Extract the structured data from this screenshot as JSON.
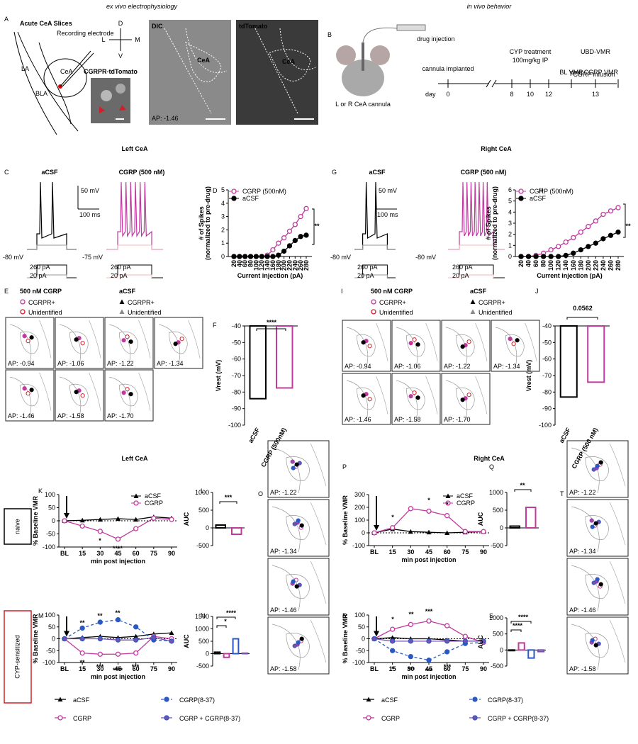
{
  "headers": {
    "ex_vivo": "ex vivo electrophysiology",
    "in_vivo": "in vivo behavior",
    "left_1": "Left CeA",
    "right_1": "Right CeA",
    "left_2": "Left CeA",
    "right_2": "Right CeA"
  },
  "panel_a": {
    "letter": "A",
    "title": "Acute CeA Slices",
    "electrode": "Recording electrode",
    "cea": "CeA",
    "la": "LA",
    "bla": "BLA",
    "reporter": "CGRPR-tdTomato",
    "dic": "DIC",
    "dic_cea": "CeA",
    "tdtomato": "tdTomato",
    "td_cea": "CeA",
    "ap": "AP: -1.46",
    "compass": [
      "D",
      "L",
      "M",
      "V"
    ]
  },
  "panel_b": {
    "letter": "B",
    "drug": "drug injection",
    "cannula": "L or R CeA cannula",
    "implanted": "cannula implanted",
    "cyp": "CYP treatment",
    "dose": "100mg/kg IP",
    "ubd": "UBD-VMR",
    "bl": "BL VMR",
    "infusion": "CGRP infusion",
    "post": "post CGRP VMR",
    "day": "day",
    "days": [
      0,
      8,
      10,
      12,
      13
    ]
  },
  "traces": [
    {
      "letter": "C",
      "acsf": "aCSF",
      "cgrp": "CGRP (500 nM)",
      "scale_v": "50 mV",
      "scale_t": "100 ms",
      "rest_acsf": "-80 mV",
      "rest_cgrp": "-75 mV",
      "step_hi": "260 pA",
      "step_lo": "20 pA"
    },
    {
      "letter": "G",
      "acsf": "aCSF",
      "cgrp": "CGRP (500 nM)",
      "scale_v": "50 mV",
      "scale_t": "100 ms",
      "rest_acsf": "-80 mV",
      "rest_cgrp": "-80 mV",
      "step_hi": "260 pA",
      "step_lo": "20 pA"
    }
  ],
  "maps": [
    {
      "letter": "E",
      "legend_cgrp": "500 nM CGRP",
      "legend_acsf": "aCSF",
      "items": [
        "CGRPR+",
        "Unidentified",
        "CGRPR+",
        "Unidentified"
      ],
      "aps": [
        "AP: -0.94",
        "AP: -1.06",
        "AP: -1.22",
        "AP: -1.34",
        "AP: -1.46",
        "AP: -1.58",
        "AP: -1.70"
      ]
    },
    {
      "letter": "I",
      "legend_cgrp": "500 nM CGRP",
      "legend_acsf": "aCSF",
      "items": [
        "CGRPR+",
        "Unidentified",
        "CGRPR+",
        "Unidentified"
      ],
      "aps": [
        "AP: -0.94",
        "AP: -1.06",
        "AP: -1.22",
        "AP: -1.34",
        "AP: -1.46",
        "AP: -1.58",
        "AP: -1.70"
      ]
    }
  ],
  "behavior_rows": {
    "naive": "naive",
    "cyp": "CYP-sensitized"
  },
  "atlases": [
    {
      "letter": "O",
      "aps": [
        "AP: -1.22",
        "AP: -1.34",
        "AP: -1.46",
        "AP: -1.58"
      ]
    },
    {
      "letter": "T",
      "aps": [
        "AP: -1.22",
        "AP: -1.34",
        "AP: -1.46",
        "AP: -1.58"
      ]
    }
  ],
  "chart_data": [
    {
      "type": "line",
      "panel": "D",
      "xlabel": "Current injection (pA)",
      "ylabel": [
        "# of Spikes",
        "(normalized to pre-drug)"
      ],
      "categories": [
        20,
        40,
        60,
        80,
        100,
        120,
        140,
        160,
        180,
        200,
        220,
        240,
        260,
        280
      ],
      "ylim": [
        0,
        5
      ],
      "yticks": [
        0,
        1,
        2,
        3,
        4,
        5
      ],
      "legend": "upper left",
      "annotations": [
        "**"
      ],
      "series": [
        {
          "name": "CGRP (500nM)",
          "color": "#c0399e",
          "marker": "circle-open",
          "values": [
            0,
            0,
            0,
            0,
            0,
            0,
            0.1,
            0.5,
            1.0,
            1.4,
            1.9,
            2.4,
            3.0,
            3.6
          ]
        },
        {
          "name": "aCSF",
          "color": "#000000",
          "marker": "circle",
          "values": [
            0,
            0,
            0,
            0,
            0,
            0,
            0,
            0,
            0.1,
            0.4,
            0.8,
            1.2,
            1.5,
            1.6
          ]
        }
      ]
    },
    {
      "type": "bar",
      "panel": "F",
      "ylabel": "Vrest (mV)",
      "categories": [
        "aCSF",
        "CGRP (500nM)"
      ],
      "values": [
        -84,
        -77.5
      ],
      "colors": [
        "#000000",
        "#c0399e"
      ],
      "ylim": [
        -100,
        -40
      ],
      "yticks": [
        -100,
        -90,
        -80,
        -70,
        -60,
        -50,
        -40
      ],
      "annotations": [
        "****"
      ]
    },
    {
      "type": "line",
      "panel": "H",
      "xlabel": "Current injection (pA)",
      "ylabel": [
        "# of Spikes",
        "(normalized to pre-drug)"
      ],
      "categories": [
        20,
        40,
        60,
        80,
        100,
        120,
        140,
        160,
        180,
        200,
        220,
        240,
        260,
        280
      ],
      "ylim": [
        0,
        6
      ],
      "yticks": [
        0,
        1,
        2,
        3,
        4,
        5,
        6
      ],
      "legend": "upper left",
      "annotations": [
        "**"
      ],
      "series": [
        {
          "name": "CGRP (500nM)",
          "color": "#c0399e",
          "marker": "circle-open",
          "values": [
            0,
            0,
            0.1,
            0.3,
            0.6,
            0.9,
            1.3,
            1.7,
            2.2,
            2.7,
            3.2,
            3.8,
            4.1,
            4.4
          ]
        },
        {
          "name": "aCSF",
          "color": "#000000",
          "marker": "circle",
          "values": [
            0,
            0,
            0,
            0,
            0,
            0,
            0.1,
            0.3,
            0.6,
            0.9,
            1.2,
            1.6,
            1.9,
            2.2
          ]
        }
      ]
    },
    {
      "type": "bar",
      "panel": "J",
      "ylabel": "Vrest (mV)",
      "categories": [
        "aCSF",
        "CGRP (500 nM)"
      ],
      "values": [
        -83,
        -74
      ],
      "colors": [
        "#000000",
        "#c0399e"
      ],
      "ylim": [
        -100,
        -40
      ],
      "yticks": [
        -100,
        -90,
        -80,
        -70,
        -60,
        -50,
        -40
      ],
      "annotations": [
        "0.0562"
      ]
    },
    {
      "type": "line",
      "panel": "K",
      "xlabel": "min post injection",
      "ylabel": "% Baseline VMR",
      "categories": [
        "BL",
        15,
        30,
        45,
        60,
        75,
        90
      ],
      "ylim": [
        -100,
        100
      ],
      "yticks": [
        -100,
        -50,
        0,
        50,
        100
      ],
      "zero_line": true,
      "legend": "upper right",
      "annotations": [
        "*",
        "****"
      ],
      "series": [
        {
          "name": "aCSF",
          "color": "#000000",
          "marker": "triangle",
          "values": [
            0,
            2,
            5,
            8,
            5,
            15,
            10
          ]
        },
        {
          "name": "CGRP",
          "color": "#c0399e",
          "marker": "circle-open",
          "values": [
            0,
            -20,
            -40,
            -70,
            -30,
            10,
            5
          ]
        }
      ]
    },
    {
      "type": "bar",
      "panel": "L",
      "ylabel": "AUC",
      "categories": [
        null,
        null
      ],
      "values": [
        80,
        -180
      ],
      "colors": [
        "#000000",
        "#c0399e"
      ],
      "ylim": [
        -500,
        1000
      ],
      "yticks": [
        -500,
        0,
        500,
        1000
      ],
      "zero_line": true,
      "annotations": [
        "***"
      ]
    },
    {
      "type": "line",
      "panel": "P",
      "xlabel": "min post injection",
      "ylabel": "% Baseline VMR",
      "categories": [
        "BL",
        15,
        30,
        45,
        60,
        75,
        90
      ],
      "ylim": [
        -100,
        300
      ],
      "yticks": [
        -100,
        0,
        100,
        200,
        300
      ],
      "zero_line": true,
      "legend": "upper right",
      "annotations": [
        "*",
        "*",
        "*"
      ],
      "series": [
        {
          "name": "aCSF",
          "color": "#000000",
          "marker": "triangle",
          "values": [
            0,
            30,
            10,
            5,
            0,
            5,
            10
          ]
        },
        {
          "name": "CGRP",
          "color": "#c0399e",
          "marker": "circle-open",
          "values": [
            0,
            40,
            190,
            170,
            135,
            10,
            10
          ]
        }
      ]
    },
    {
      "type": "bar",
      "panel": "Q",
      "ylabel": "AUC",
      "categories": [
        null,
        null
      ],
      "values": [
        50,
        580
      ],
      "colors": [
        "#000000",
        "#c0399e"
      ],
      "ylim": [
        -500,
        1000
      ],
      "yticks": [
        -500,
        0,
        500,
        1000
      ],
      "zero_line": true,
      "annotations": [
        "**"
      ]
    },
    {
      "type": "line",
      "panel": "M",
      "xlabel": "min post injection",
      "ylabel": "% Baseline VMR",
      "categories": [
        "BL",
        15,
        30,
        45,
        60,
        75,
        90
      ],
      "ylim": [
        -100,
        100
      ],
      "yticks": [
        -100,
        -50,
        0,
        50,
        100
      ],
      "zero_line": true,
      "annotations": [
        "**",
        "**",
        "**",
        "**",
        "***",
        "****",
        "***"
      ],
      "series": [
        {
          "name": "aCSF",
          "color": "#000000",
          "marker": "triangle",
          "values": [
            0,
            5,
            10,
            5,
            10,
            20,
            25
          ]
        },
        {
          "name": "CGRP(8-37)",
          "color": "#2b59c3",
          "marker": "circle",
          "dash": true,
          "values": [
            0,
            45,
            70,
            80,
            50,
            -5,
            -10
          ]
        },
        {
          "name": "CGRP",
          "color": "#c0399e",
          "marker": "circle-open",
          "values": [
            0,
            -60,
            -65,
            -65,
            -60,
            10,
            0
          ]
        },
        {
          "name": "CGRP + CGRP(8-37)",
          "color": "#7a4fb0",
          "edge": "#2b59c3",
          "marker": "circle",
          "values": [
            0,
            0,
            0,
            -5,
            -5,
            5,
            -10
          ]
        }
      ]
    },
    {
      "type": "bar",
      "panel": "N",
      "ylabel": "AUC",
      "categories": [
        null,
        null,
        null,
        null
      ],
      "values": [
        60,
        -150,
        600,
        20
      ],
      "colors": [
        "#000000",
        "#c0399e",
        "#2b59c3",
        "#7a4fb0"
      ],
      "ylim": [
        -500,
        1500
      ],
      "yticks": [
        -500,
        0,
        500,
        1000,
        1500
      ],
      "zero_line": true,
      "annotations": [
        "*",
        "****"
      ]
    },
    {
      "type": "line",
      "panel": "R",
      "xlabel": "min post injection",
      "ylabel": "% Baseline VMR",
      "categories": [
        "BL",
        15,
        30,
        45,
        60,
        75,
        90
      ],
      "ylim": [
        -100,
        100
      ],
      "yticks": [
        -100,
        -50,
        0,
        50,
        100
      ],
      "zero_line": true,
      "annotations": [
        "*",
        "**",
        "***",
        "*",
        "***",
        "***",
        "***"
      ],
      "series": [
        {
          "name": "aCSF",
          "color": "#000000",
          "marker": "triangle",
          "values": [
            0,
            5,
            0,
            0,
            -5,
            -10,
            -10
          ]
        },
        {
          "name": "CGRP(8-37)",
          "color": "#2b59c3",
          "marker": "circle",
          "dash": true,
          "values": [
            0,
            -50,
            -75,
            -90,
            -55,
            -20,
            -15
          ]
        },
        {
          "name": "CGRP",
          "color": "#c0399e",
          "marker": "circle-open",
          "values": [
            0,
            40,
            60,
            75,
            55,
            10,
            -15
          ]
        },
        {
          "name": "CGRP + CGRP(8-37)",
          "color": "#7a4fb0",
          "edge": "#2b59c3",
          "marker": "circle",
          "values": [
            0,
            -10,
            -10,
            -10,
            -10,
            -10,
            -10
          ]
        }
      ]
    },
    {
      "type": "bar",
      "panel": "S",
      "ylabel": "AUC",
      "categories": [
        null,
        null,
        null,
        null
      ],
      "values": [
        -20,
        220,
        -250,
        -50
      ],
      "colors": [
        "#000000",
        "#c0399e",
        "#2b59c3",
        "#7a4fb0"
      ],
      "ylim": [
        -500,
        1000
      ],
      "yticks": [
        -500,
        0,
        500,
        1000
      ],
      "zero_line": true,
      "annotations": [
        "****",
        "****"
      ]
    }
  ]
}
